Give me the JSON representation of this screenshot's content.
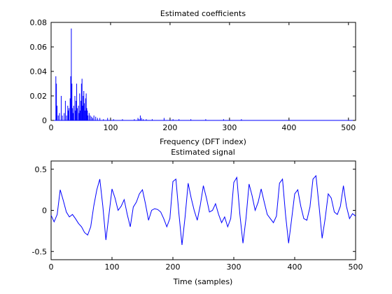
{
  "chart_data": [
    {
      "type": "bar",
      "title": "Estimated coefficients",
      "xlabel": "Frequency (DFT index)",
      "ylabel": "",
      "xlim": [
        0,
        512
      ],
      "ylim": [
        0,
        0.08
      ],
      "xticks": [
        0,
        100,
        200,
        300,
        400,
        500
      ],
      "yticks": [
        0,
        0.02,
        0.04,
        0.06,
        0.08
      ],
      "ytick_labels": [
        "0",
        "0.02",
        "0.04",
        "0.06",
        "0.08"
      ],
      "grid": false,
      "color": "#0000ff",
      "x": [
        8,
        9,
        10,
        12,
        14,
        17,
        19,
        22,
        24,
        26,
        28,
        29,
        30,
        32,
        33,
        34,
        35,
        36,
        37,
        38,
        40,
        41,
        42,
        43,
        44,
        46,
        47,
        48,
        49,
        50,
        51,
        52,
        53,
        54,
        55,
        56,
        57,
        58,
        59,
        60,
        61,
        62,
        64,
        66,
        68,
        70,
        72,
        75,
        78,
        82,
        88,
        95,
        105,
        120,
        140,
        146,
        148,
        150,
        152,
        155,
        160,
        170,
        190,
        205,
        215,
        235,
        260,
        290,
        320
      ],
      "values": [
        0.036,
        0.03,
        0.012,
        0.004,
        0.006,
        0.02,
        0.004,
        0.006,
        0.016,
        0.004,
        0.012,
        0.008,
        0.01,
        0.018,
        0.036,
        0.075,
        0.03,
        0.01,
        0.006,
        0.012,
        0.02,
        0.008,
        0.016,
        0.03,
        0.01,
        0.012,
        0.006,
        0.022,
        0.008,
        0.016,
        0.03,
        0.034,
        0.012,
        0.02,
        0.024,
        0.014,
        0.008,
        0.018,
        0.022,
        0.01,
        0.008,
        0.004,
        0.006,
        0.004,
        0.003,
        0.002,
        0.004,
        0.003,
        0.002,
        0.002,
        0.001,
        0.002,
        0.001,
        0.001,
        0.001,
        0.002,
        0.001,
        0.004,
        0.002,
        0.001,
        0.001,
        0.001,
        0.002,
        0.001,
        0.001,
        0.001,
        0.001,
        0.001,
        0.001
      ]
    },
    {
      "type": "line",
      "title": "Estimated signal",
      "xlabel": "Time (samples)",
      "ylabel": "",
      "xlim": [
        0,
        500
      ],
      "ylim": [
        -0.6,
        0.6
      ],
      "xticks": [
        0,
        100,
        200,
        300,
        400,
        500
      ],
      "yticks": [
        -0.5,
        0,
        0.5
      ],
      "ytick_labels": [
        "-0.5",
        "0",
        "0.5"
      ],
      "grid": false,
      "color": "#0000ff",
      "x": [
        0,
        5,
        10,
        15,
        20,
        25,
        30,
        35,
        40,
        45,
        50,
        55,
        60,
        65,
        70,
        75,
        80,
        85,
        90,
        95,
        100,
        105,
        110,
        115,
        120,
        125,
        130,
        135,
        140,
        145,
        150,
        155,
        160,
        165,
        170,
        175,
        180,
        185,
        190,
        195,
        200,
        205,
        210,
        215,
        220,
        225,
        230,
        235,
        240,
        245,
        250,
        255,
        260,
        265,
        270,
        275,
        280,
        285,
        290,
        295,
        300,
        305,
        310,
        315,
        320,
        325,
        330,
        335,
        340,
        345,
        350,
        355,
        360,
        365,
        370,
        375,
        380,
        385,
        390,
        395,
        400,
        405,
        410,
        415,
        420,
        425,
        430,
        435,
        440,
        445,
        450,
        455,
        460,
        465,
        470,
        475,
        480,
        485,
        490,
        495,
        500
      ],
      "values": [
        -0.06,
        -0.14,
        -0.05,
        0.25,
        0.12,
        -0.02,
        -0.08,
        -0.05,
        -0.1,
        -0.16,
        -0.2,
        -0.27,
        -0.3,
        -0.2,
        0.05,
        0.25,
        0.38,
        0.05,
        -0.36,
        -0.05,
        0.26,
        0.15,
        0.0,
        0.05,
        0.13,
        -0.05,
        -0.2,
        0.04,
        0.1,
        0.2,
        0.25,
        0.08,
        -0.12,
        0.0,
        0.02,
        0.01,
        -0.02,
        -0.1,
        -0.2,
        -0.1,
        0.35,
        0.38,
        -0.05,
        -0.42,
        -0.08,
        0.33,
        0.15,
        0.0,
        -0.12,
        0.06,
        0.3,
        0.15,
        -0.02,
        0.0,
        0.08,
        -0.05,
        -0.15,
        -0.08,
        -0.2,
        -0.1,
        0.34,
        0.4,
        -0.05,
        -0.4,
        -0.1,
        0.32,
        0.18,
        0.0,
        0.1,
        0.26,
        0.1,
        -0.05,
        -0.1,
        -0.15,
        -0.07,
        0.33,
        0.38,
        -0.05,
        -0.4,
        -0.1,
        0.2,
        0.25,
        0.05,
        -0.1,
        -0.12,
        0.04,
        0.38,
        0.42,
        0.05,
        -0.34,
        -0.1,
        0.2,
        0.15,
        -0.02,
        -0.05,
        0.05,
        0.3,
        0.05,
        -0.1,
        -0.04,
        -0.07
      ]
    }
  ]
}
